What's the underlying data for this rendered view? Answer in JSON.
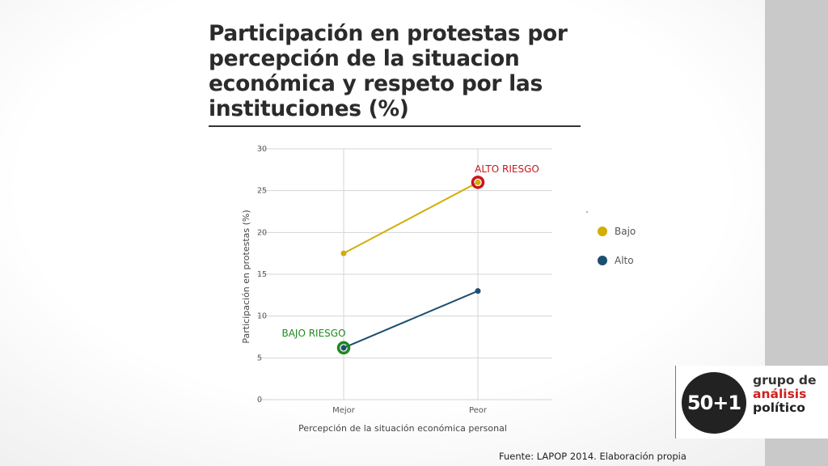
{
  "slide": {
    "title": "Participación en protestas por\npercepción de la situacion\neconómica y respeto por las\ninstituciones (%)",
    "source": "Fuente: LAPOP 2014. Elaboración propia"
  },
  "logo": {
    "mark": "50+1",
    "line1": "grupo de",
    "line2": "análisis",
    "line3": "político"
  },
  "chart_data": {
    "type": "line",
    "categories": [
      "Mejor",
      "Peor"
    ],
    "xlabel": "Percepción de la situación económica personal",
    "ylabel": "Participación en protestas (%)",
    "ylim": [
      0,
      30
    ],
    "yticks": [
      0,
      5,
      10,
      15,
      20,
      25,
      30
    ],
    "grid": true,
    "legend_position": "right",
    "series": [
      {
        "name": "Bajo",
        "values": [
          17.5,
          26
        ],
        "color": "#d4ad00"
      },
      {
        "name": "Alto",
        "values": [
          6.2,
          13
        ],
        "color": "#1d4f73"
      }
    ],
    "annotations": [
      {
        "text": "ALTO RIESGO",
        "series": 0,
        "point": 1,
        "color": "#c8171d"
      },
      {
        "text": "BAJO RIESGO",
        "series": 1,
        "point": 0,
        "color": "#1e8a1e"
      }
    ],
    "colors": {
      "grid": "#d4d4d4",
      "axis_text": "#555555"
    }
  }
}
